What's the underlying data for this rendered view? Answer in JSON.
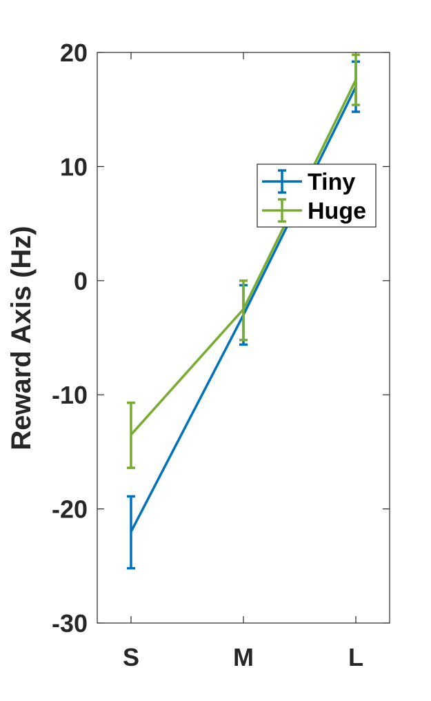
{
  "chart_data": {
    "type": "line",
    "title": "",
    "xlabel": "",
    "ylabel": "Reward Axis (Hz)",
    "categories": [
      "S",
      "M",
      "L"
    ],
    "ylim": [
      -30,
      20
    ],
    "yticks": [
      -30,
      -20,
      -10,
      0,
      10,
      20
    ],
    "ytick_labels": [
      "-30",
      "-20",
      "-10",
      "0",
      "10",
      "20"
    ],
    "grid": false,
    "legend": "top-right",
    "series": [
      {
        "name": "Tiny",
        "color": "#0072BD",
        "values": [
          -22,
          -3,
          17
        ],
        "err_low": [
          -25.2,
          -5.6,
          14.8
        ],
        "err_high": [
          -18.9,
          -0.4,
          19.2
        ]
      },
      {
        "name": "Huge",
        "color": "#77AC30",
        "values": [
          -13.5,
          -2.5,
          17.6
        ],
        "err_low": [
          -16.4,
          -5.2,
          15.4
        ],
        "err_high": [
          -10.7,
          0,
          19.8
        ]
      }
    ]
  }
}
